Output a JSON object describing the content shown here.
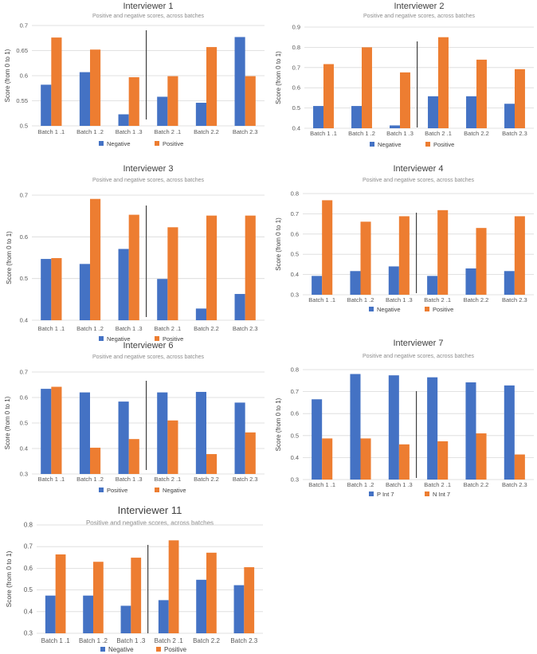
{
  "colors": {
    "blue": "#4472c4",
    "orange": "#ed7d31",
    "grid": "#d9d9d9",
    "divider": "#404040"
  },
  "chart_data": [
    {
      "type": "bar",
      "title": "Interviewer 1",
      "subtitle": "Positive and negative scores, across batches",
      "ylabel": "Score (from 0 to 1)",
      "xlabel": "",
      "categories": [
        "Batch 1 .1",
        "Batch 1 .2",
        "Batch 1 .3",
        "Batch 2 .1",
        "Batch 2.2",
        "Batch 2.3"
      ],
      "yticks": [
        "0.5",
        "0.55",
        "0.6",
        "0.65",
        "0.7"
      ],
      "ylim": [
        0.5,
        0.7
      ],
      "divider_after": 3,
      "series": [
        {
          "name": "Negative",
          "color": "#4472c4",
          "values": [
            0.582,
            0.607,
            0.523,
            0.558,
            0.546,
            0.677
          ]
        },
        {
          "name": "Positive",
          "color": "#ed7d31",
          "values": [
            0.676,
            0.652,
            0.597,
            0.599,
            0.657,
            0.599
          ]
        }
      ]
    },
    {
      "type": "bar",
      "title": "Interviewer 2",
      "subtitle": "Positive and negative scores, across batches",
      "ylabel": "Score (from 0 to 1)",
      "xlabel": "",
      "categories": [
        "Batch 1 .1",
        "Batch 1 .2",
        "Batch 1 .3",
        "Batch 2 .1",
        "Batch 2.2",
        "Batch 2.3"
      ],
      "yticks": [
        "0.4",
        "0.5",
        "0.6",
        "0.7",
        "0.8",
        "0.9"
      ],
      "ylim": [
        0.4,
        0.9
      ],
      "divider_after": 3,
      "series": [
        {
          "name": "Negative",
          "color": "#4472c4",
          "values": [
            0.51,
            0.51,
            0.414,
            0.558,
            0.558,
            0.521
          ]
        },
        {
          "name": "Positive",
          "color": "#ed7d31",
          "values": [
            0.717,
            0.8,
            0.676,
            0.85,
            0.739,
            0.692
          ]
        }
      ]
    },
    {
      "type": "bar",
      "title": "Interviewer 3",
      "subtitle": "Positive and negative scores, across batches",
      "ylabel": "Score (from 0 to 1)",
      "xlabel": "",
      "categories": [
        "Batch 1 .1",
        "Batch 1 .2",
        "Batch 1 .3",
        "Batch 2 .1",
        "Batch 2.2",
        "Batch 2.3"
      ],
      "yticks": [
        "0.4",
        "0.5",
        "0.6",
        "0.7"
      ],
      "ylim": [
        0.4,
        0.7
      ],
      "divider_after": 3,
      "series": [
        {
          "name": "Negative",
          "color": "#4472c4",
          "values": [
            0.547,
            0.535,
            0.571,
            0.499,
            0.428,
            0.463
          ]
        },
        {
          "name": "Positive",
          "color": "#ed7d31",
          "values": [
            0.549,
            0.691,
            0.653,
            0.623,
            0.651,
            0.651
          ]
        }
      ]
    },
    {
      "type": "bar",
      "title": "Interviewer 4",
      "subtitle": "Positive and negative scores, across batches",
      "ylabel": "Score (from 0 to 1)",
      "xlabel": "",
      "categories": [
        "Batch 1 .1",
        "Batch 1 .2",
        "Batch 1 .3",
        "Batch 2 .1",
        "Batch 2.2",
        "Batch 2.3"
      ],
      "yticks": [
        "0.3",
        "0.4",
        "0.5",
        "0.6",
        "0.7",
        "0.8"
      ],
      "ylim": [
        0.3,
        0.8
      ],
      "divider_after": 3,
      "series": [
        {
          "name": "Negative",
          "color": "#4472c4",
          "values": [
            0.393,
            0.417,
            0.44,
            0.393,
            0.43,
            0.417
          ]
        },
        {
          "name": "Positive",
          "color": "#ed7d31",
          "values": [
            0.767,
            0.661,
            0.688,
            0.718,
            0.63,
            0.688
          ]
        }
      ]
    },
    {
      "type": "bar",
      "title": "Interviewer 6",
      "subtitle": "Positive and negative scores, across batches",
      "ylabel": "Score (from 0 to 1)",
      "xlabel": "",
      "categories": [
        "Batch 1 .1",
        "Batch 1 .2",
        "Batch 1 .3",
        "Batch 2 .1",
        "Batch 2.2",
        "Batch 2.3"
      ],
      "yticks": [
        "0.3",
        "0.4",
        "0.5",
        "0.6",
        "0.7"
      ],
      "ylim": [
        0.3,
        0.7
      ],
      "divider_after": 3,
      "series": [
        {
          "name": "Positive",
          "color": "#4472c4",
          "values": [
            0.634,
            0.62,
            0.584,
            0.62,
            0.622,
            0.58
          ]
        },
        {
          "name": "Negative",
          "color": "#ed7d31",
          "values": [
            0.642,
            0.403,
            0.437,
            0.51,
            0.378,
            0.463
          ]
        }
      ]
    },
    {
      "type": "bar",
      "title": "Interviewer 7",
      "subtitle": "Positive and negative scores, across batches",
      "ylabel": "Score (from 0 to 1)",
      "xlabel": "",
      "categories": [
        "Batch 1 .1",
        "Batch 1 .2",
        "Batch 1 .3",
        "Batch 2 .1",
        "Batch 2.2",
        "Batch 2.3"
      ],
      "yticks": [
        "0.3",
        "0.4",
        "0.5",
        "0.6",
        "0.7",
        "0.8"
      ],
      "ylim": [
        0.3,
        0.8
      ],
      "divider_after": 3,
      "series": [
        {
          "name": "P Int 7",
          "color": "#4472c4",
          "values": [
            0.665,
            0.78,
            0.774,
            0.765,
            0.742,
            0.728
          ]
        },
        {
          "name": "N Int 7",
          "color": "#ed7d31",
          "values": [
            0.487,
            0.487,
            0.46,
            0.474,
            0.51,
            0.414
          ]
        }
      ]
    },
    {
      "type": "bar",
      "title": "Interviewer 11",
      "subtitle": "Positive and negative scores, across batches",
      "ylabel": "Score (from 0 to 1)",
      "xlabel": "",
      "categories": [
        "Batch 1 .1",
        "Batch 1 .2",
        "Batch 1 .3",
        "Batch 2 .1",
        "Batch 2.2",
        "Batch 2.3"
      ],
      "yticks": [
        "0.3",
        "0.4",
        "0.5",
        "0.6",
        "0.7",
        "0.8"
      ],
      "ylim": [
        0.3,
        0.8
      ],
      "divider_after": 3,
      "series": [
        {
          "name": "Negative",
          "color": "#4472c4",
          "values": [
            0.474,
            0.474,
            0.427,
            0.453,
            0.547,
            0.522
          ]
        },
        {
          "name": "Positive",
          "color": "#ed7d31",
          "values": [
            0.664,
            0.63,
            0.649,
            0.729,
            0.672,
            0.605
          ]
        }
      ]
    }
  ]
}
